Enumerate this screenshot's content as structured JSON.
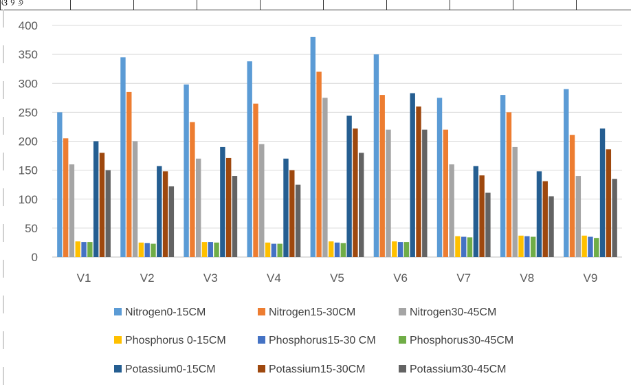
{
  "header_row": {
    "partial_text": "ଓ ୨ ୬"
  },
  "chart_data": {
    "type": "bar",
    "title": "",
    "xlabel": "",
    "ylabel": "",
    "ylim": [
      0,
      400
    ],
    "yticks": [
      0,
      50,
      100,
      150,
      200,
      250,
      300,
      350,
      400
    ],
    "categories": [
      "V1",
      "V2",
      "V3",
      "V4",
      "V5",
      "V6",
      "V7",
      "V8",
      "V9"
    ],
    "grid": true,
    "legend_position": "bottom",
    "series": [
      {
        "name": "Nitrogen0-15CM",
        "color": "#5B9BD5",
        "values": [
          250,
          345,
          298,
          338,
          380,
          350,
          275,
          280,
          290
        ]
      },
      {
        "name": "Nitrogen15-30CM",
        "color": "#ED7D31",
        "values": [
          205,
          285,
          233,
          265,
          320,
          280,
          220,
          250,
          211
        ]
      },
      {
        "name": "Nitrogen30-45CM",
        "color": "#A5A5A5",
        "values": [
          160,
          200,
          170,
          195,
          275,
          220,
          160,
          190,
          140
        ]
      },
      {
        "name": "Phosphorus 0-15CM",
        "color": "#FFC000",
        "values": [
          27,
          25,
          26,
          25,
          27,
          27,
          36,
          37,
          37
        ]
      },
      {
        "name": "Phosphorus15-30 CM",
        "color": "#4472C4",
        "values": [
          26,
          24,
          26,
          23,
          25,
          26,
          35,
          36,
          35
        ]
      },
      {
        "name": "Phosphorus30-45CM",
        "color": "#70AD47",
        "values": [
          26,
          23,
          25,
          23,
          24,
          26,
          34,
          35,
          33
        ]
      },
      {
        "name": "Potassium0-15CM",
        "color": "#255E91",
        "values": [
          200,
          157,
          190,
          170,
          244,
          283,
          157,
          148,
          222
        ]
      },
      {
        "name": "Potassium15-30CM",
        "color": "#9E480E",
        "values": [
          180,
          148,
          171,
          150,
          222,
          260,
          141,
          131,
          186
        ]
      },
      {
        "name": "Potassium30-45CM",
        "color": "#636363",
        "values": [
          150,
          122,
          140,
          125,
          180,
          220,
          111,
          105,
          135
        ]
      }
    ]
  }
}
